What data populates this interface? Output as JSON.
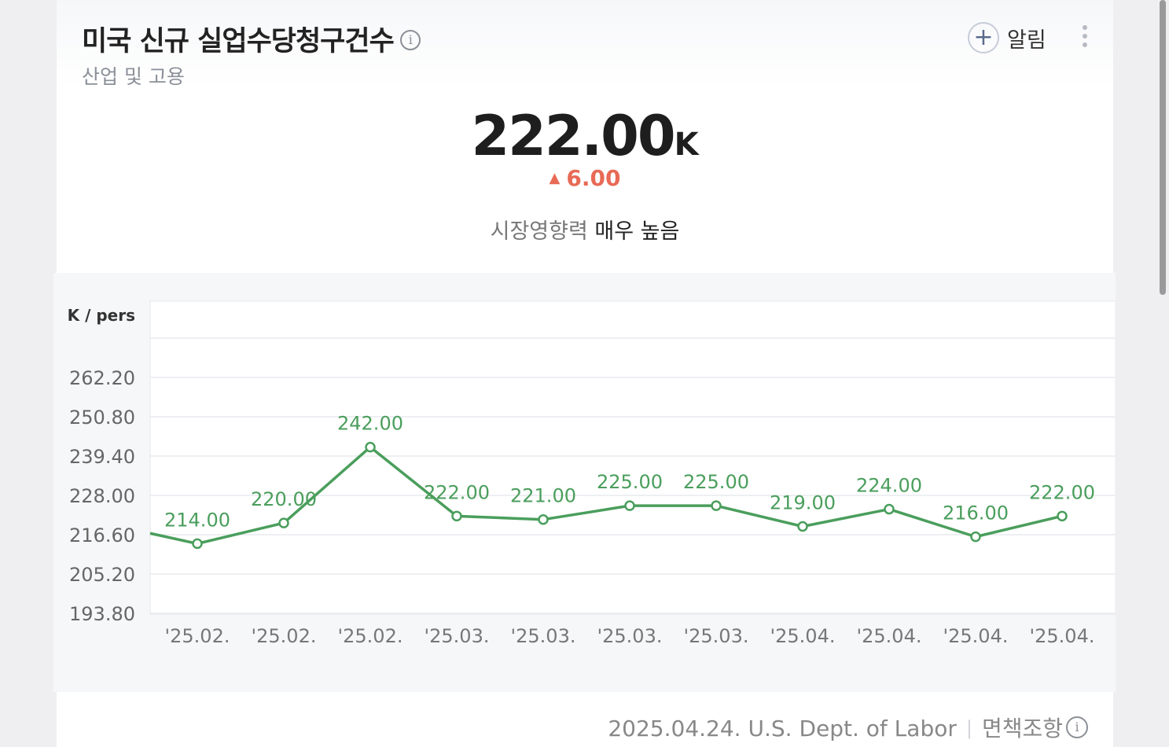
{
  "header": {
    "title": "미국 신규 실업수당청구건수",
    "info_icon": "info-icon",
    "subtitle": "산업 및 고용",
    "alert_label": "알림",
    "alert_icon": "plus-circle-icon",
    "more_icon": "more-vertical-icon"
  },
  "summary": {
    "value": "222.00",
    "unit": "K",
    "change": "6.00",
    "change_direction": "up",
    "change_color": "#e86a55",
    "impact_label": "시장영향력",
    "impact_level": "매우 높음"
  },
  "chart_data": {
    "type": "line",
    "ylabel": "K / pers",
    "yticks": [
      "262.20",
      "250.80",
      "239.40",
      "228.00",
      "216.60",
      "205.20",
      "193.80"
    ],
    "ylim": [
      193.8,
      273.6
    ],
    "categories": [
      "'25.02.",
      "'25.02.",
      "'25.02.",
      "'25.03.",
      "'25.03.",
      "'25.03.",
      "'25.03.",
      "'25.04.",
      "'25.04.",
      "'25.04.",
      "'25.04."
    ],
    "series": [
      {
        "values": [
          214,
          220,
          242,
          222,
          221,
          225,
          225,
          219,
          224,
          216,
          222
        ],
        "labels": [
          "214.00",
          "220.00",
          "242.00",
          "222.00",
          "221.00",
          "225.00",
          "225.00",
          "219.00",
          "224.00",
          "216.00",
          "222.00"
        ],
        "color": "#4a9e5c"
      }
    ],
    "grid": true
  },
  "footer": {
    "date": "2025.04.24.",
    "source": "U.S. Dept. of Labor",
    "disclaimer": "면책조항",
    "disclaimer_icon": "info-icon"
  }
}
